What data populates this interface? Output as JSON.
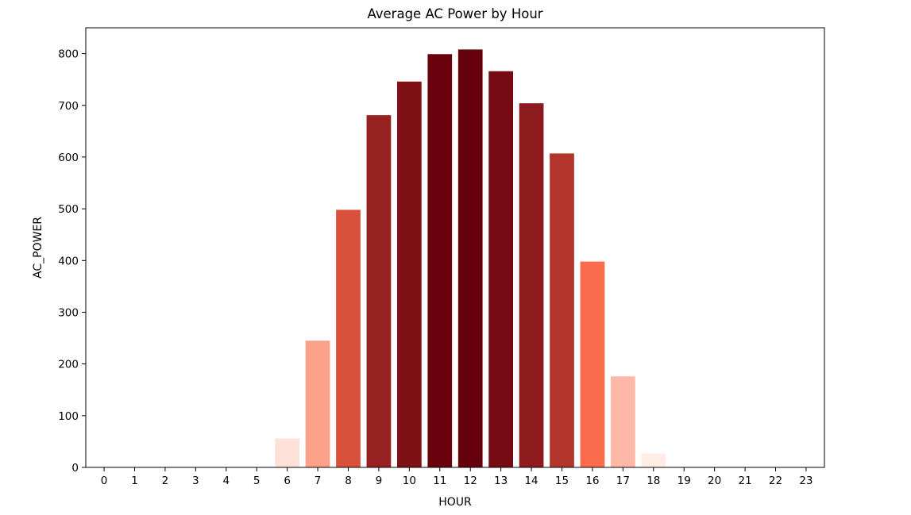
{
  "chart_data": {
    "type": "bar",
    "title": "Average AC Power by Hour",
    "xlabel": "HOUR",
    "ylabel": "AC_POWER",
    "categories": [
      "0",
      "1",
      "2",
      "3",
      "4",
      "5",
      "6",
      "7",
      "8",
      "9",
      "10",
      "11",
      "12",
      "13",
      "14",
      "15",
      "16",
      "17",
      "18",
      "19",
      "20",
      "21",
      "22",
      "23"
    ],
    "values": [
      0,
      0,
      0,
      0,
      0,
      0,
      56,
      245,
      498,
      681,
      746,
      799,
      808,
      766,
      704,
      607,
      398,
      176,
      27,
      0,
      0,
      0,
      0,
      0
    ],
    "ylim": [
      0,
      850
    ],
    "yticks": [
      0,
      100,
      200,
      300,
      400,
      500,
      600,
      700,
      800
    ],
    "grid": false,
    "legend": "none",
    "colormap": "Reds",
    "colors": {
      "low": "#fff5f0",
      "mid": "#fb6a4a",
      "high": "#67000d",
      "axis": "#000000"
    }
  }
}
